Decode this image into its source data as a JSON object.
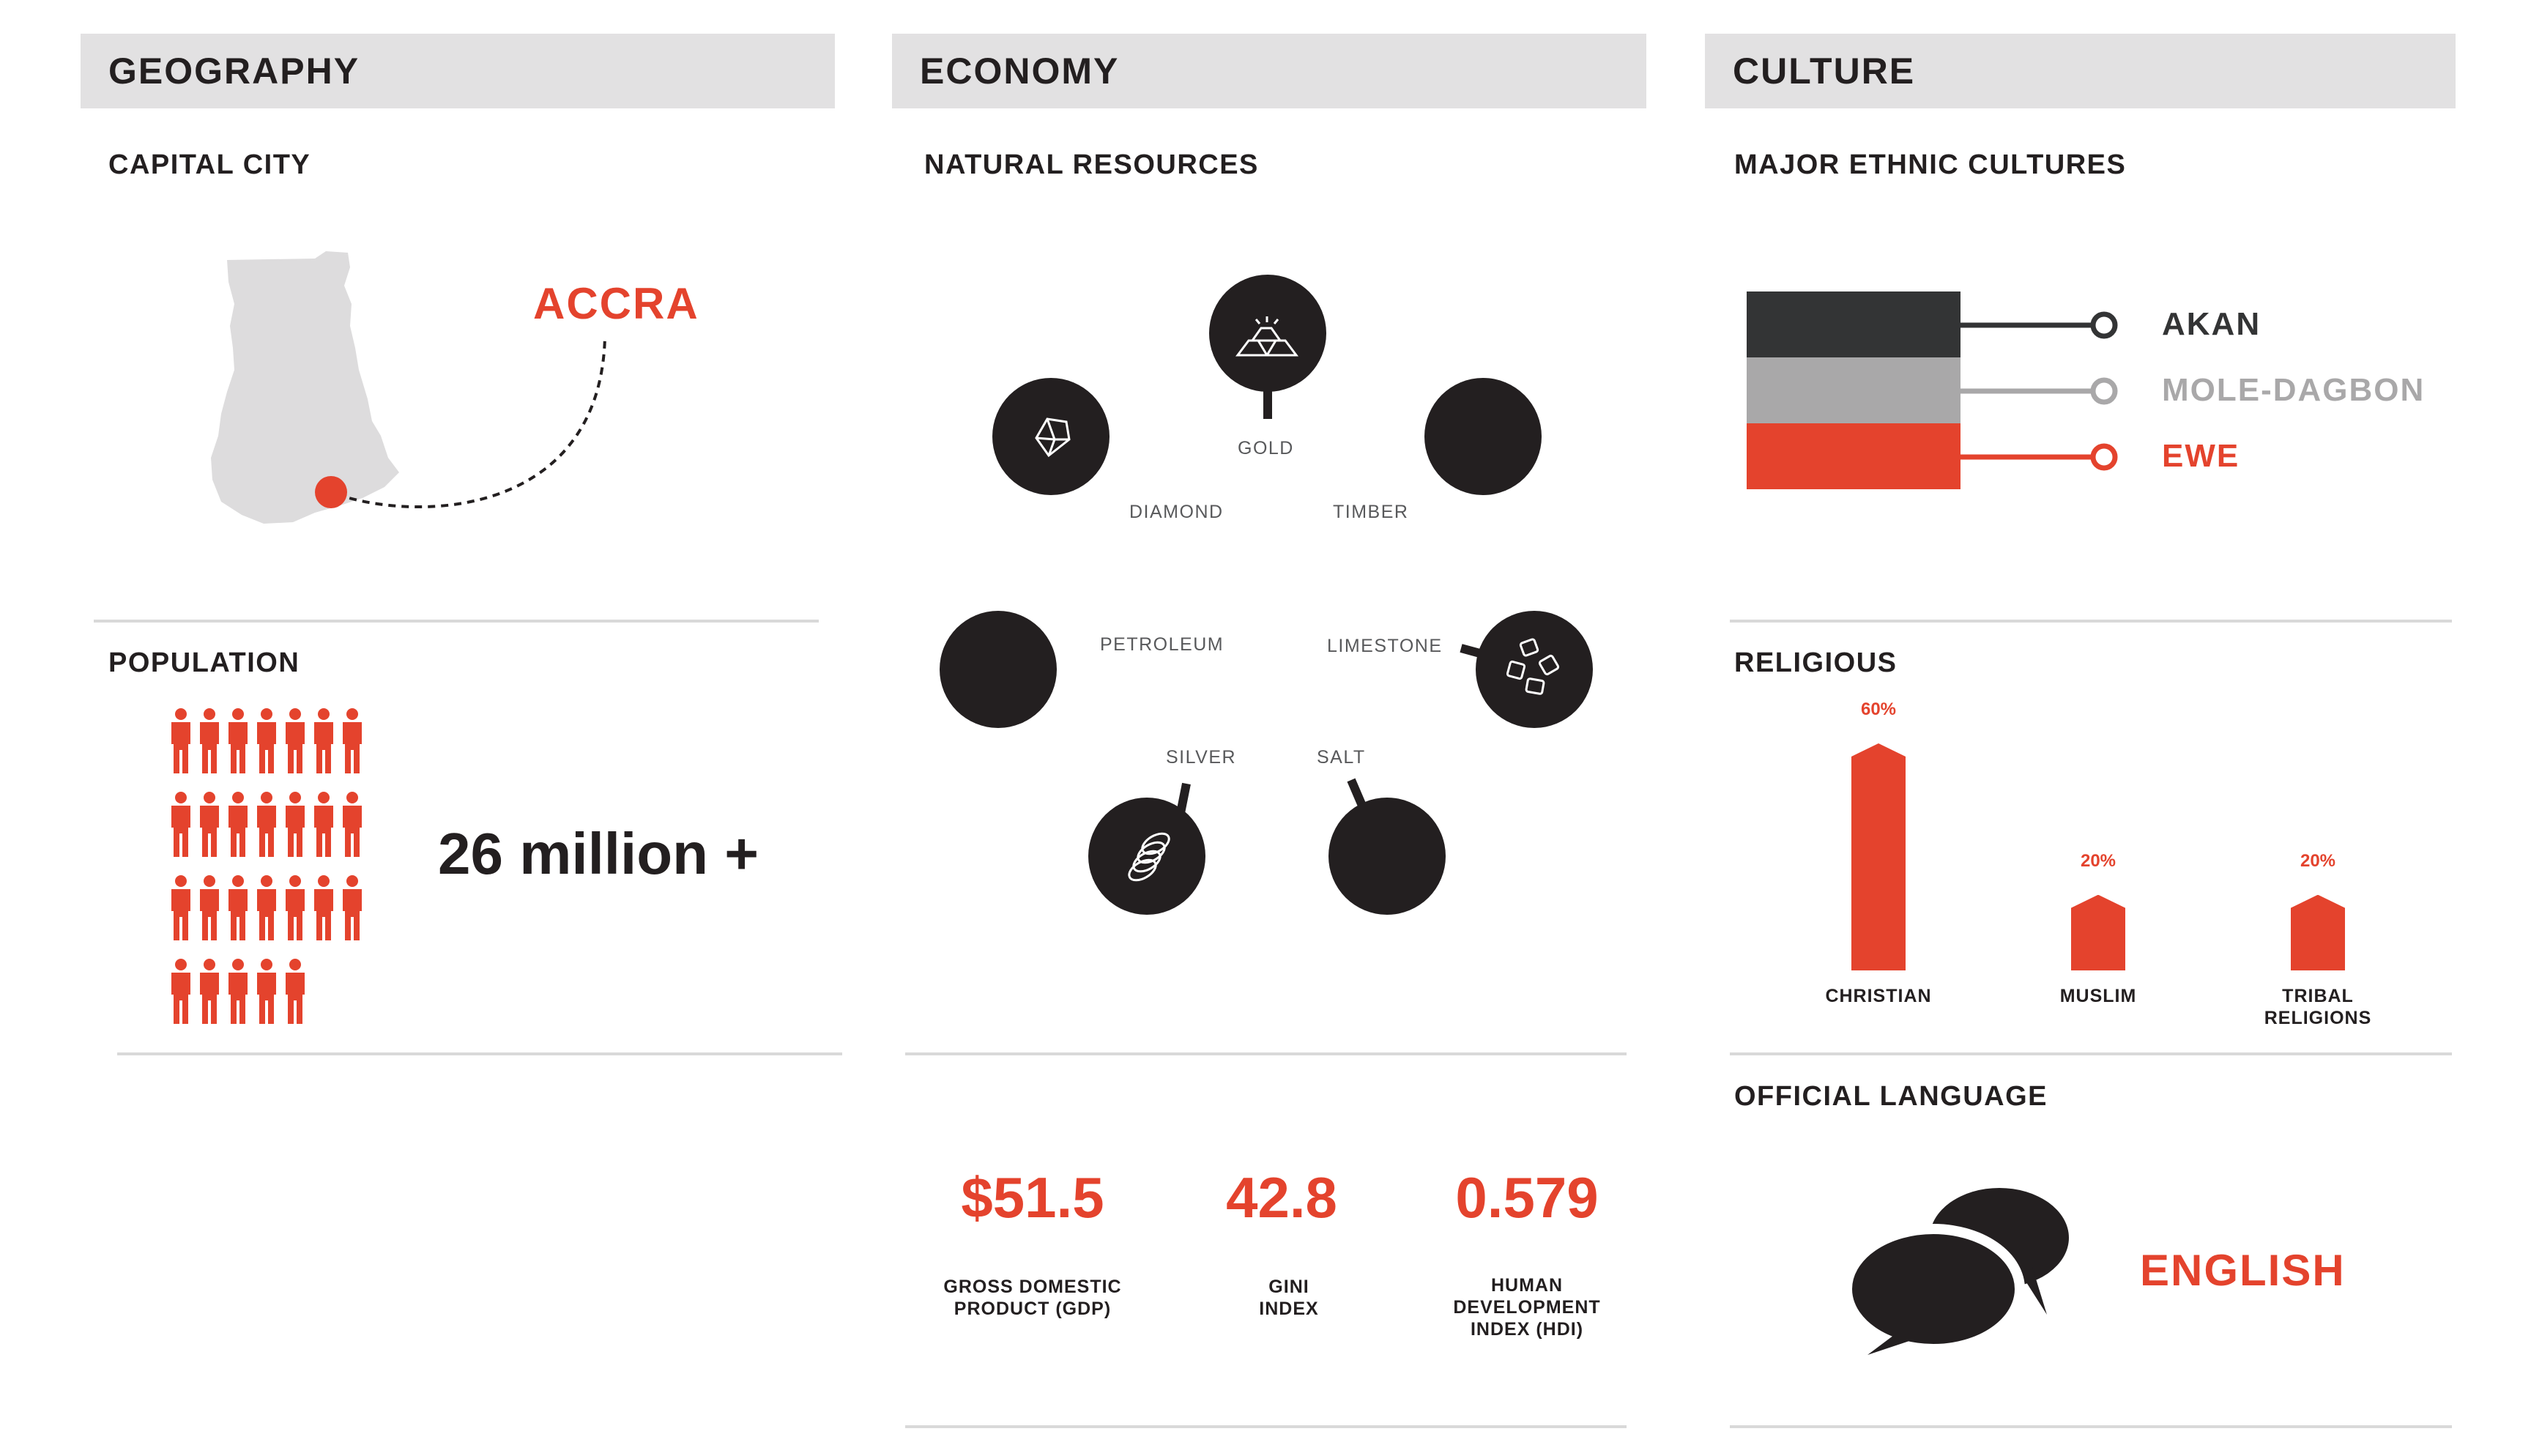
{
  "colors": {
    "accent": "#e4432d",
    "dark": "#231f20",
    "header_bg": "#e2e1e2",
    "light_gray": "#a9a8a9",
    "map_gray": "#dddcdd"
  },
  "geography": {
    "header": "GEOGRAPHY",
    "capital_label": "CAPITAL CITY",
    "capital": "ACCRA",
    "population_label": "POPULATION",
    "population": "26 million +",
    "population_icon_rows": [
      7,
      7,
      7,
      5
    ]
  },
  "economy": {
    "header": "ECONOMY",
    "resources_label": "NATURAL RESOURCES",
    "resources": [
      {
        "name": "GOLD",
        "icon": "gold-bars-icon"
      },
      {
        "name": "DIAMOND",
        "icon": "diamond-icon"
      },
      {
        "name": "TIMBER",
        "icon": "timber-icon"
      },
      {
        "name": "PETROLEUM",
        "icon": "petroleum-icon"
      },
      {
        "name": "LIMESTONE",
        "icon": "limestone-icon"
      },
      {
        "name": "SILVER",
        "icon": "silver-coins-icon"
      },
      {
        "name": "SALT",
        "icon": "salt-icon"
      }
    ],
    "stats": [
      {
        "value": "$51.5",
        "label": "GROSS DOMESTIC\nPRODUCT (GDP)"
      },
      {
        "value": "42.8",
        "label": "GINI\nINDEX"
      },
      {
        "value": "0.579",
        "label": "HUMAN\nDEVELOPMENT\nINDEX (HDI)"
      }
    ]
  },
  "culture": {
    "header": "CULTURE",
    "ethnic_label": "MAJOR ETHNIC CULTURES",
    "ethnic": [
      {
        "name": "AKAN",
        "color": "#333435"
      },
      {
        "name": "MOLE-DAGBON",
        "color": "#a9a8a9"
      },
      {
        "name": "EWE",
        "color": "#e4432d"
      }
    ],
    "religious_label": "RELIGIOUS",
    "religions": [
      {
        "name": "CHRISTIAN",
        "percent": 60,
        "pct_label": "60%"
      },
      {
        "name": "MUSLIM",
        "percent": 20,
        "pct_label": "20%"
      },
      {
        "name": "TRIBAL\nRELIGIONS",
        "percent": 20,
        "pct_label": "20%"
      }
    ],
    "language_label": "OFFICIAL LANGUAGE",
    "language": "ENGLISH",
    "language_icon": "speech-bubbles-icon"
  }
}
